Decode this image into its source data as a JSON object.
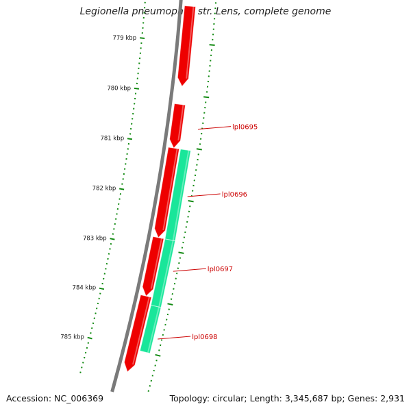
{
  "header": {
    "title": "Legionella pneumophila str. Lens, complete genome"
  },
  "footer": {
    "accession": "Accession: NC_006369",
    "summary": "Topology: circular; Length: 3,345,687 bp; Genes: 2,931"
  },
  "colors": {
    "backbone": "#7a7a7a",
    "forward_gene": "#ee0000",
    "reverse_gene": "#19e69a",
    "tick": "#128a12",
    "gene_label": "#cc0000"
  },
  "ruler": {
    "ticks_kbp": [
      779,
      780,
      781,
      782,
      783,
      784,
      785
    ],
    "labels": [
      "779 kbp",
      "780 kbp",
      "781 kbp",
      "782 kbp",
      "783 kbp",
      "784 kbp",
      "785 kbp"
    ]
  },
  "genes": [
    {
      "strand": "+",
      "start_kbp": 778.3,
      "end_kbp": 779.85,
      "label": ""
    },
    {
      "strand": "+",
      "start_kbp": 780.2,
      "end_kbp": 781.05,
      "label": "lpl0695"
    },
    {
      "strand": "+",
      "start_kbp": 781.05,
      "end_kbp": 782.8,
      "label": "lpl0696"
    },
    {
      "strand": "+",
      "start_kbp": 782.8,
      "end_kbp": 783.95,
      "label": "lpl0697"
    },
    {
      "strand": "+",
      "start_kbp": 783.95,
      "end_kbp": 785.45,
      "label": "lpl0698"
    },
    {
      "strand": "-",
      "start_kbp": 781.05,
      "end_kbp": 782.8,
      "label": ""
    },
    {
      "strand": "-",
      "start_kbp": 782.8,
      "end_kbp": 784.1,
      "label": ""
    },
    {
      "strand": "-",
      "start_kbp": 784.1,
      "end_kbp": 785.0,
      "label": ""
    }
  ]
}
